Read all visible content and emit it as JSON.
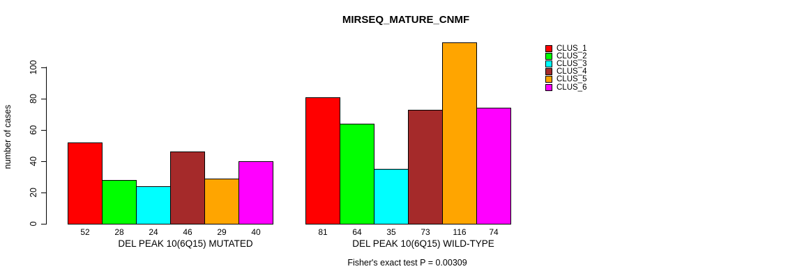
{
  "title": "MIRSEQ_MATURE_CNMF",
  "footer": {
    "text": "Fisher's exact test P = 0.00309"
  },
  "legend": {
    "entries": [
      {
        "label": "CLUS_1",
        "color": "#FF0000"
      },
      {
        "label": "CLUS_2",
        "color": "#00FF00"
      },
      {
        "label": "CLUS_3",
        "color": "#00FFFF"
      },
      {
        "label": "CLUS_4",
        "color": "#A52A2A"
      },
      {
        "label": "CLUS_5",
        "color": "#FFA500"
      },
      {
        "label": "CLUS_6",
        "color": "#FF00FF"
      }
    ]
  },
  "chart_data": {
    "type": "bar",
    "title": "MIRSEQ_MATURE_CNMF",
    "xlabel": "",
    "ylabel": "number of cases",
    "ylim": [
      0,
      116
    ],
    "yticks": [
      0,
      20,
      40,
      60,
      80,
      100
    ],
    "grid": false,
    "legend_position": "right",
    "categories": [
      "DEL PEAK 10(6Q15) MUTATED",
      "DEL PEAK 10(6Q15) WILD-TYPE"
    ],
    "series": [
      {
        "name": "CLUS_1",
        "color": "#FF0000",
        "values": [
          52,
          81
        ]
      },
      {
        "name": "CLUS_2",
        "color": "#00FF00",
        "values": [
          28,
          64
        ]
      },
      {
        "name": "CLUS_3",
        "color": "#00FFFF",
        "values": [
          24,
          35
        ]
      },
      {
        "name": "CLUS_4",
        "color": "#A52A2A",
        "values": [
          46,
          73
        ]
      },
      {
        "name": "CLUS_5",
        "color": "#FFA500",
        "values": [
          29,
          116
        ]
      },
      {
        "name": "CLUS_6",
        "color": "#FF00FF",
        "values": [
          40,
          74
        ]
      }
    ],
    "bar_labels_shown_under_bars": true,
    "annotation": "Fisher's exact test P = 0.00309"
  }
}
